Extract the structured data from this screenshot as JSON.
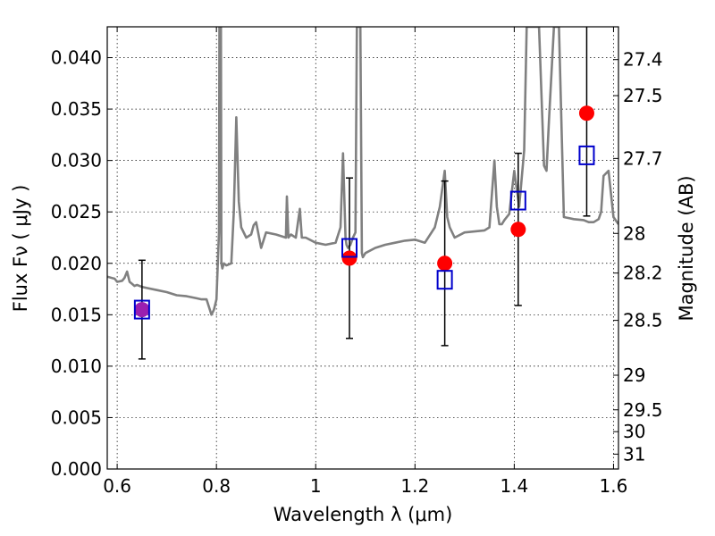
{
  "chart_data": {
    "type": "scatter",
    "xlabel": "Wavelength  λ (μm)",
    "ylabel": "Flux  Fν ( μJy )",
    "y2label": "Magnitude (AB)",
    "xlim": [
      0.58,
      1.61
    ],
    "ylim": [
      0.0,
      0.043
    ],
    "grid": true,
    "x_ticks": [
      "0.6",
      "0.8",
      "1",
      "1.2",
      "1.4",
      "1.6"
    ],
    "x_tick_values": [
      0.6,
      0.8,
      1.0,
      1.2,
      1.4,
      1.6
    ],
    "y_ticks": [
      "0.000",
      "0.005",
      "0.010",
      "0.015",
      "0.020",
      "0.025",
      "0.030",
      "0.035",
      "0.040"
    ],
    "y_tick_values": [
      0.0,
      0.005,
      0.01,
      0.015,
      0.02,
      0.025,
      0.03,
      0.035,
      0.04
    ],
    "mag_ticks": [
      "27.4",
      "27.5",
      "27.7",
      "28",
      "28.2",
      "28.5",
      "29",
      "29.5",
      "30",
      "31"
    ],
    "mag_tick_values": [
      27.4,
      27.5,
      27.7,
      28.0,
      28.2,
      28.5,
      29.0,
      29.5,
      30.0,
      31.0
    ],
    "colors": {
      "spectrum": "#808080",
      "observed": "#ff0000",
      "model": "#0000cc",
      "errorbar": "#000000",
      "overlap": "#9b1fb0"
    },
    "series": [
      {
        "kind": "spectrum",
        "x": [
          0.58,
          0.595,
          0.6,
          0.61,
          0.615,
          0.62,
          0.625,
          0.63,
          0.635,
          0.64,
          0.65,
          0.66,
          0.68,
          0.7,
          0.72,
          0.74,
          0.76,
          0.77,
          0.78,
          0.79,
          0.795,
          0.8,
          0.805,
          0.806,
          0.807,
          0.808,
          0.809,
          0.81,
          0.812,
          0.815,
          0.82,
          0.83,
          0.835,
          0.84,
          0.845,
          0.85,
          0.86,
          0.87,
          0.875,
          0.88,
          0.89,
          0.9,
          0.92,
          0.94,
          0.942,
          0.945,
          0.95,
          0.96,
          0.968,
          0.972,
          0.98,
          1.0,
          1.02,
          1.04,
          1.05,
          1.055,
          1.06,
          1.062,
          1.065,
          1.07,
          1.075,
          1.08,
          1.083,
          1.085,
          1.09,
          1.093,
          1.095,
          1.1,
          1.12,
          1.14,
          1.16,
          1.18,
          1.2,
          1.22,
          1.24,
          1.25,
          1.26,
          1.265,
          1.27,
          1.28,
          1.3,
          1.32,
          1.34,
          1.35,
          1.36,
          1.365,
          1.37,
          1.375,
          1.38,
          1.39,
          1.4,
          1.41,
          1.42,
          1.425,
          1.43,
          1.435,
          1.44,
          1.45,
          1.46,
          1.465,
          1.47,
          1.48,
          1.49,
          1.5,
          1.52,
          1.54,
          1.55,
          1.56,
          1.57,
          1.575,
          1.58,
          1.59,
          1.6,
          1.61
        ],
        "y": [
          0.0187,
          0.0185,
          0.0182,
          0.0183,
          0.0186,
          0.0192,
          0.0182,
          0.018,
          0.0178,
          0.0179,
          0.0177,
          0.0176,
          0.0174,
          0.0172,
          0.0169,
          0.0168,
          0.0166,
          0.0165,
          0.0165,
          0.015,
          0.0155,
          0.0165,
          0.023,
          0.043,
          0.043,
          0.043,
          0.043,
          0.02,
          0.0195,
          0.02,
          0.0198,
          0.02,
          0.025,
          0.0342,
          0.026,
          0.0235,
          0.0225,
          0.0228,
          0.0237,
          0.024,
          0.0215,
          0.023,
          0.0228,
          0.0225,
          0.0265,
          0.0225,
          0.0228,
          0.0225,
          0.0253,
          0.0225,
          0.0225,
          0.022,
          0.0218,
          0.022,
          0.0235,
          0.0307,
          0.0225,
          0.0218,
          0.0215,
          0.0218,
          0.0225,
          0.023,
          0.043,
          0.043,
          0.043,
          0.021,
          0.0206,
          0.021,
          0.0215,
          0.0218,
          0.022,
          0.0222,
          0.0223,
          0.022,
          0.0235,
          0.0255,
          0.029,
          0.0245,
          0.0235,
          0.0225,
          0.023,
          0.0231,
          0.0232,
          0.0235,
          0.03,
          0.0255,
          0.0238,
          0.0238,
          0.0242,
          0.0248,
          0.029,
          0.0255,
          0.031,
          0.043,
          0.043,
          0.043,
          0.043,
          0.043,
          0.0295,
          0.029,
          0.034,
          0.043,
          0.043,
          0.0245,
          0.0243,
          0.0242,
          0.024,
          0.024,
          0.0243,
          0.025,
          0.0285,
          0.029,
          0.0245,
          0.0238
        ]
      },
      {
        "kind": "observed",
        "x": [
          0.65,
          1.068,
          1.26,
          1.408,
          1.546
        ],
        "y": [
          0.0155,
          0.0205,
          0.02,
          0.0233,
          0.0346
        ],
        "yerr": [
          0.0048,
          0.0078,
          0.008,
          0.0074,
          0.01
        ]
      },
      {
        "kind": "model",
        "x": [
          0.65,
          1.068,
          1.26,
          1.408,
          1.546
        ],
        "y": [
          0.0155,
          0.0215,
          0.0184,
          0.0261,
          0.0305
        ]
      }
    ]
  }
}
